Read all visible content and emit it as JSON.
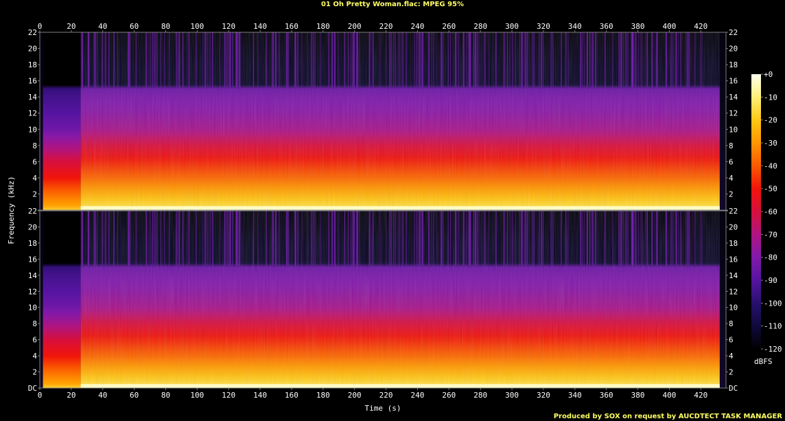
{
  "title": "01 Oh Pretty Woman.flac: MPEG 95%",
  "footer": "Produced by SOX on request by AUCDTECT TASK MANAGER",
  "colors": {
    "background": "#000000",
    "title_text": "#ffff66",
    "footer_text": "#ffff66",
    "axis_text": "#ffffff",
    "frame": "#808080"
  },
  "chart_data": {
    "type": "heatmap",
    "title": "01 Oh Pretty Woman.flac: MPEG 95%",
    "xlabel": "Time (s)",
    "ylabel": "Frequency (kHz)",
    "xlim": [
      0,
      436
    ],
    "ylim_khz": [
      0,
      22
    ],
    "x_ticks": [
      0,
      20,
      40,
      60,
      80,
      100,
      120,
      140,
      160,
      180,
      200,
      220,
      240,
      260,
      280,
      300,
      320,
      340,
      360,
      380,
      400,
      420
    ],
    "y_ticks": [
      0,
      2,
      4,
      6,
      8,
      10,
      12,
      14,
      16,
      18,
      20,
      22
    ],
    "y_tick_labels_upper": [
      "",
      "2",
      "4",
      "6",
      "8",
      "10",
      "12",
      "14",
      "16",
      "18",
      "20",
      "22"
    ],
    "y_tick_labels_lower": [
      "DC",
      "2",
      "4",
      "6",
      "8",
      "10",
      "12",
      "14",
      "16",
      "18",
      "20",
      "22"
    ],
    "channels": [
      "upper",
      "lower"
    ],
    "content_start_s": 26,
    "content_end_s": 432,
    "intro_start_s": 2,
    "lowpass_cutoff_khz": 15.2,
    "intro_cutoff_khz": 15.0,
    "colorbar": {
      "label": "dBFS",
      "ticks": [
        "+0",
        "-10",
        "-20",
        "-30",
        "-40",
        "-50",
        "-60",
        "-70",
        "-80",
        "-90",
        "-100",
        "-110",
        "-120"
      ],
      "range_db": [
        -120,
        0
      ]
    },
    "energy_profile_db": [
      {
        "khz": 0.0,
        "db": -5
      },
      {
        "khz": 0.5,
        "db": -15
      },
      {
        "khz": 2.0,
        "db": -25
      },
      {
        "khz": 4.0,
        "db": -38
      },
      {
        "khz": 6.0,
        "db": -48
      },
      {
        "khz": 8.0,
        "db": -60
      },
      {
        "khz": 10.0,
        "db": -72
      },
      {
        "khz": 12.0,
        "db": -78
      },
      {
        "khz": 14.0,
        "db": -82
      },
      {
        "khz": 15.2,
        "db": -86
      },
      {
        "khz": 15.3,
        "db": -112
      },
      {
        "khz": 22.0,
        "db": -118
      }
    ]
  }
}
